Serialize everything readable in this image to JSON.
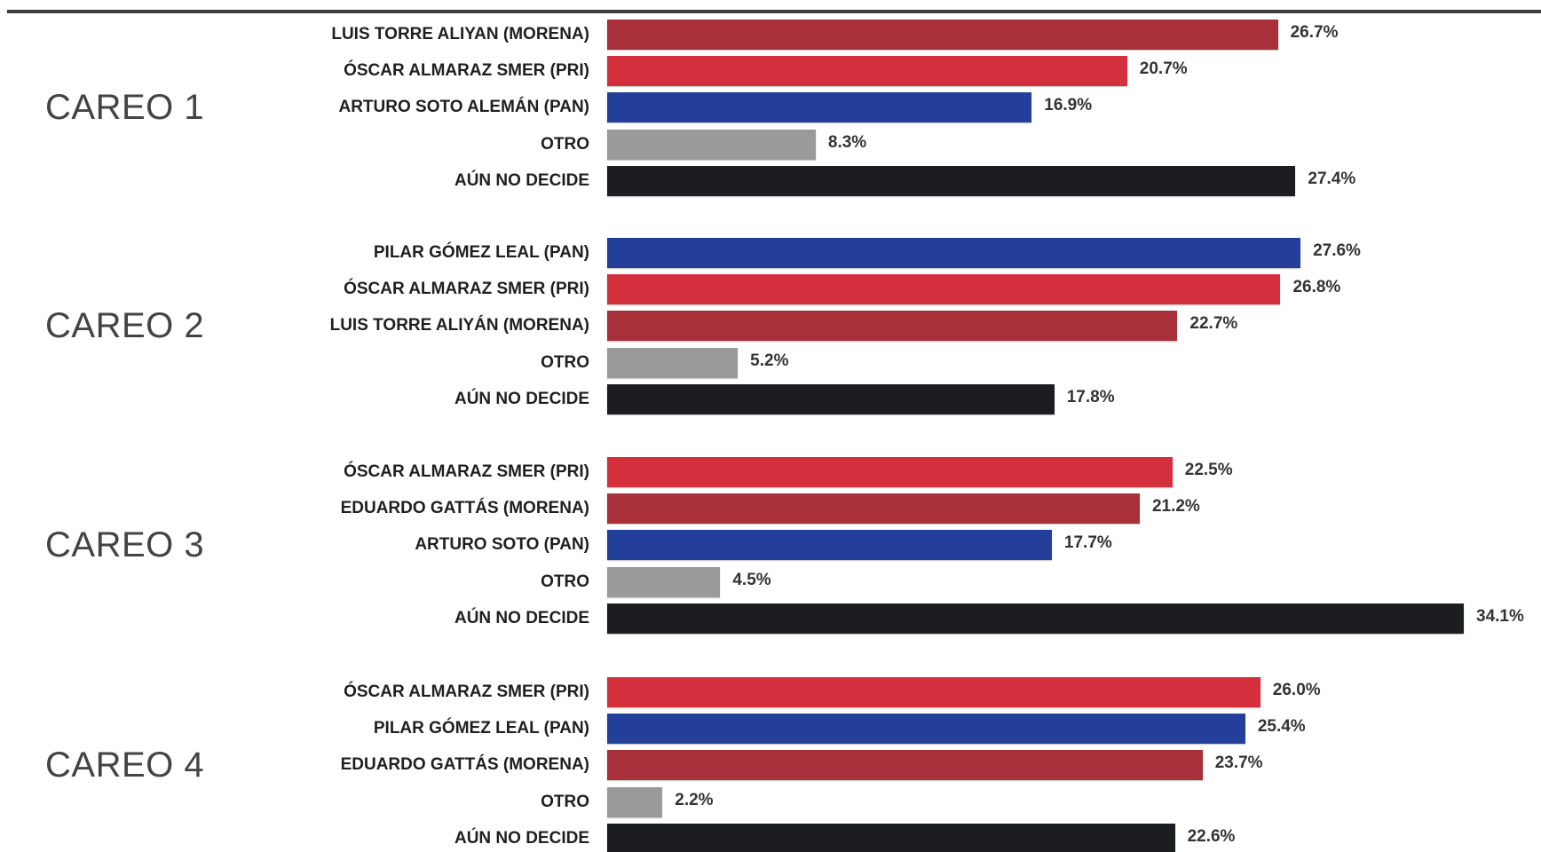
{
  "colors": {
    "morena": "#a8303b",
    "pri": "#d42f3c",
    "pan": "#233f9a",
    "otro": "#9a9a9a",
    "undecided": "#1b1d20"
  },
  "chart_data": [
    {
      "type": "bar",
      "orientation": "horizontal",
      "title": "CAREO 1",
      "categories": [
        "LUIS TORRE ALIYAN (MORENA)",
        "ÓSCAR ALMARAZ SMER (PRI)",
        "ARTURO SOTO ALEMÁN (PAN)",
        "OTRO",
        "AÚN NO DECIDE"
      ],
      "values": [
        26.7,
        20.7,
        16.9,
        8.3,
        27.4
      ],
      "value_labels": [
        "26.7%",
        "20.7%",
        "16.9%",
        "8.3%",
        "27.4%"
      ],
      "bar_colors": [
        "morena",
        "pri",
        "pan",
        "otro",
        "undecided"
      ]
    },
    {
      "type": "bar",
      "orientation": "horizontal",
      "title": "CAREO 2",
      "categories": [
        "PILAR GÓMEZ LEAL (PAN)",
        "ÓSCAR ALMARAZ SMER (PRI)",
        "LUIS TORRE ALIYÁN (MORENA)",
        "OTRO",
        "AÚN NO DECIDE"
      ],
      "values": [
        27.6,
        26.8,
        22.7,
        5.2,
        17.8
      ],
      "value_labels": [
        "27.6%",
        "26.8%",
        "22.7%",
        "5.2%",
        "17.8%"
      ],
      "bar_colors": [
        "pan",
        "pri",
        "morena",
        "otro",
        "undecided"
      ]
    },
    {
      "type": "bar",
      "orientation": "horizontal",
      "title": "CAREO 3",
      "categories": [
        "ÓSCAR ALMARAZ SMER (PRI)",
        "EDUARDO GATTÁS  (MORENA)",
        "ARTURO SOTO (PAN)",
        "OTRO",
        "AÚN NO DECIDE"
      ],
      "values": [
        22.5,
        21.2,
        17.7,
        4.5,
        34.1
      ],
      "value_labels": [
        "22.5%",
        "21.2%",
        "17.7%",
        "4.5%",
        "34.1%"
      ],
      "bar_colors": [
        "pri",
        "morena",
        "pan",
        "otro",
        "undecided"
      ]
    },
    {
      "type": "bar",
      "orientation": "horizontal",
      "title": "CAREO 4",
      "categories": [
        "ÓSCAR ALMARAZ SMER (PRI)",
        "PILAR GÓMEZ LEAL (PAN)",
        "EDUARDO GATTÁS (MORENA)",
        "OTRO",
        "AÚN NO DECIDE"
      ],
      "values": [
        26.0,
        25.4,
        23.7,
        2.2,
        22.6
      ],
      "value_labels": [
        "26.0%",
        "25.4%",
        "23.7%",
        "2.2%",
        "22.6%"
      ],
      "bar_colors": [
        "pri",
        "pan",
        "morena",
        "otro",
        "undecided"
      ]
    }
  ]
}
